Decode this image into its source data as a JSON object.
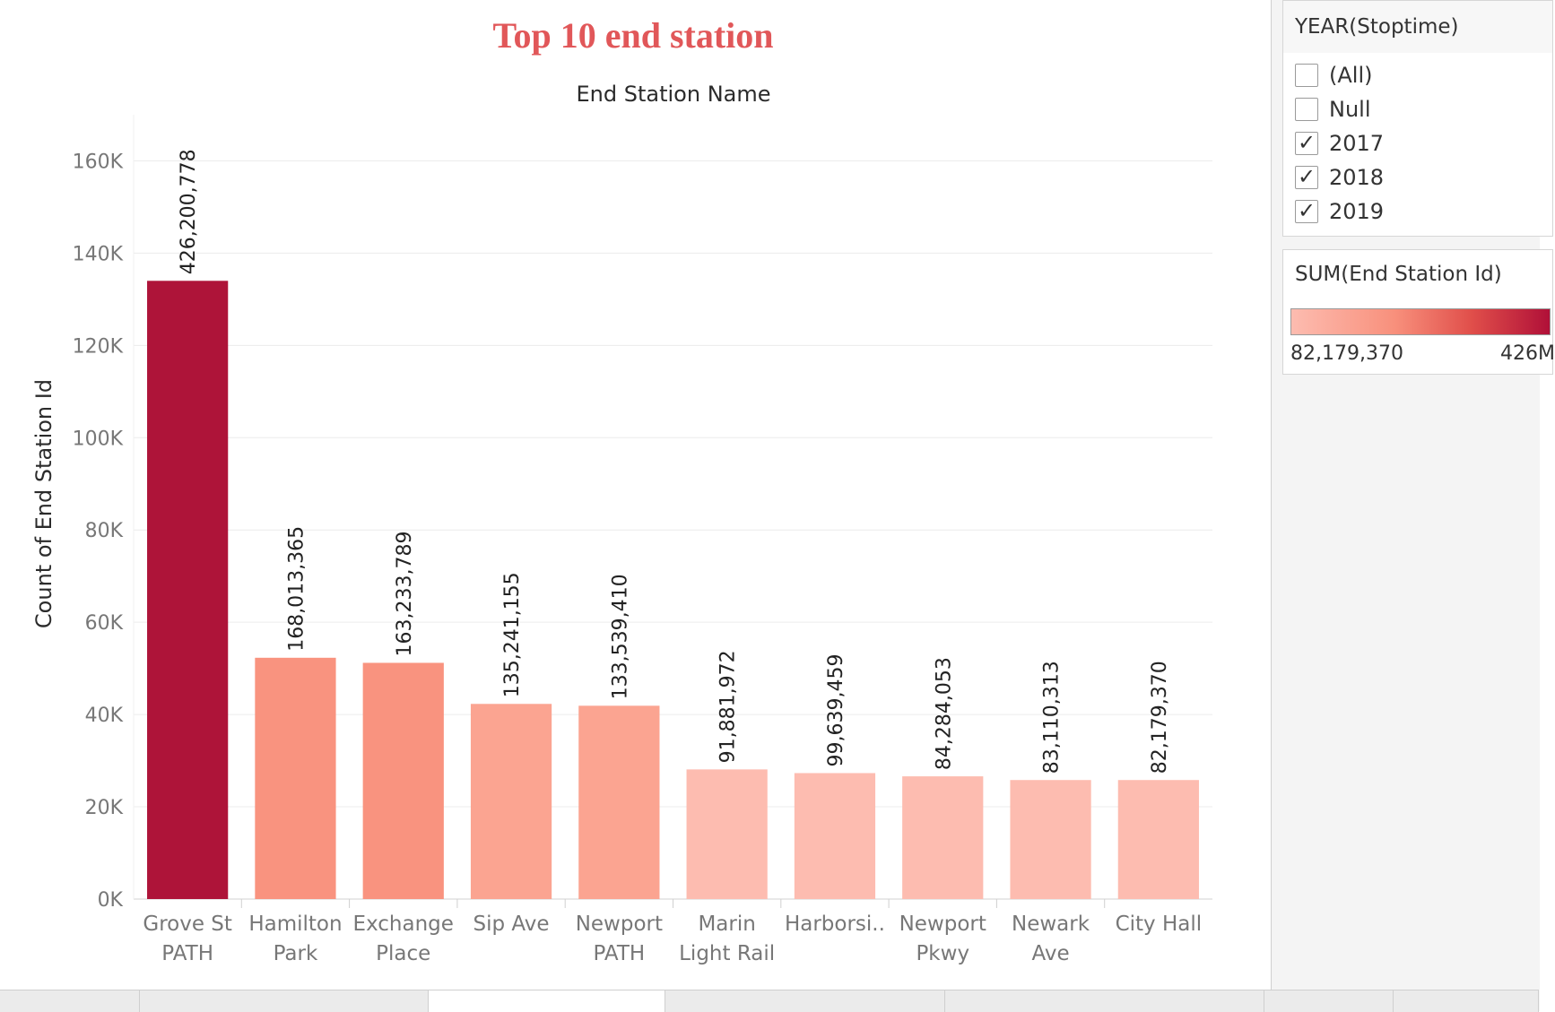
{
  "chart_data": {
    "type": "bar",
    "title": "Top 10 end station",
    "xlabel": "End Station Name",
    "ylabel": "Count of End Station Id",
    "ylim": [
      0,
      170000
    ],
    "yticks": [
      0,
      20000,
      40000,
      60000,
      80000,
      100000,
      120000,
      140000,
      160000
    ],
    "ytick_labels": [
      "0K",
      "20K",
      "40K",
      "60K",
      "80K",
      "100K",
      "120K",
      "140K",
      "160K"
    ],
    "grid": true,
    "categories": [
      [
        "Grove St",
        "PATH"
      ],
      [
        "Hamilton",
        "Park"
      ],
      [
        "Exchange",
        "Place"
      ],
      [
        "Sip Ave"
      ],
      [
        "Newport",
        "PATH"
      ],
      [
        "Marin",
        "Light Rail"
      ],
      [
        "Harborsi.."
      ],
      [
        "Newport",
        "Pkwy"
      ],
      [
        "Newark",
        "Ave"
      ],
      [
        "City Hall"
      ]
    ],
    "values": [
      134000,
      52300,
      51200,
      42300,
      41900,
      28100,
      27300,
      26600,
      25800,
      25800
    ],
    "data_labels": [
      "426,200,778",
      "168,013,365",
      "163,233,789",
      "135,241,155",
      "133,539,410",
      "91,881,972",
      "99,639,459",
      "84,284,053",
      "83,110,313",
      "82,179,370"
    ],
    "color_values": [
      426200778,
      168013365,
      163233789,
      135241155,
      133539410,
      91881972,
      99639459,
      84284053,
      83110313,
      82179370
    ],
    "bar_colors": [
      "#ae1439",
      "#f9937f",
      "#f9937f",
      "#fba491",
      "#fba491",
      "#fdbcb0",
      "#fdbcb0",
      "#fdbcb0",
      "#fdbcb0",
      "#fdbcb0"
    ]
  },
  "filter": {
    "title": "YEAR(Stoptime)",
    "options": [
      {
        "label": "(All)",
        "checked": false
      },
      {
        "label": "Null",
        "checked": false
      },
      {
        "label": "2017",
        "checked": true
      },
      {
        "label": "2018",
        "checked": true
      },
      {
        "label": "2019",
        "checked": true
      }
    ]
  },
  "legend": {
    "title": "SUM(End Station Id)",
    "min_label": "82,179,370",
    "max_label": "426M"
  },
  "colors": {
    "title": "#e15759",
    "grid": "#ececec",
    "axis": "#d0d0d0"
  }
}
